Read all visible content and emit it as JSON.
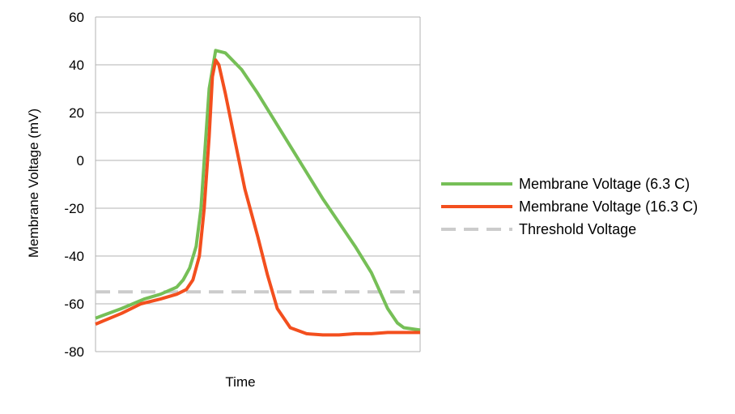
{
  "chart_data": {
    "type": "line",
    "title": "",
    "xlabel": "Time",
    "ylabel": "Membrane Voltage (mV)",
    "ylim": [
      -80,
      60
    ],
    "yticks": [
      60,
      40,
      20,
      0,
      -20,
      -40,
      -60,
      -80
    ],
    "xlim": [
      0,
      100
    ],
    "grid": true,
    "legend_position": "right",
    "series": [
      {
        "name": "Membrane Voltage (6.3 C)",
        "color": "#76bf57",
        "dashed": false,
        "x": [
          0,
          8,
          15,
          20,
          25,
          27,
          29,
          31,
          32.5,
          33.5,
          35,
          37,
          40,
          45,
          50,
          55,
          60,
          65,
          70,
          75,
          80,
          85,
          88,
          90,
          93,
          95,
          100
        ],
        "y": [
          -66,
          -62,
          -58,
          -56,
          -53,
          -50,
          -45,
          -36,
          -20,
          0,
          30,
          46,
          45,
          38,
          28,
          17,
          6,
          -5,
          -16,
          -26,
          -36,
          -47,
          -56,
          -62,
          -68,
          -70,
          -71
        ]
      },
      {
        "name": "Membrane Voltage (16.3 C)",
        "color": "#f34f1e",
        "dashed": false,
        "x": [
          0,
          8,
          14,
          20,
          25,
          28,
          30,
          32,
          33.5,
          35,
          36,
          37,
          38,
          40,
          43,
          46,
          50,
          53,
          56,
          60,
          65,
          70,
          75,
          80,
          85,
          90,
          95,
          100
        ],
        "y": [
          -68.5,
          -64,
          -60,
          -58,
          -56,
          -54,
          -50,
          -40,
          -20,
          10,
          35,
          42,
          40,
          28,
          8,
          -12,
          -32,
          -48,
          -62,
          -70,
          -72.5,
          -73,
          -73,
          -72.5,
          -72.5,
          -72,
          -72,
          -72
        ]
      },
      {
        "name": "Threshold Voltage",
        "color": "#cccccc",
        "dashed": true,
        "x": [
          0,
          100
        ],
        "y": [
          -55,
          -55
        ]
      }
    ]
  }
}
